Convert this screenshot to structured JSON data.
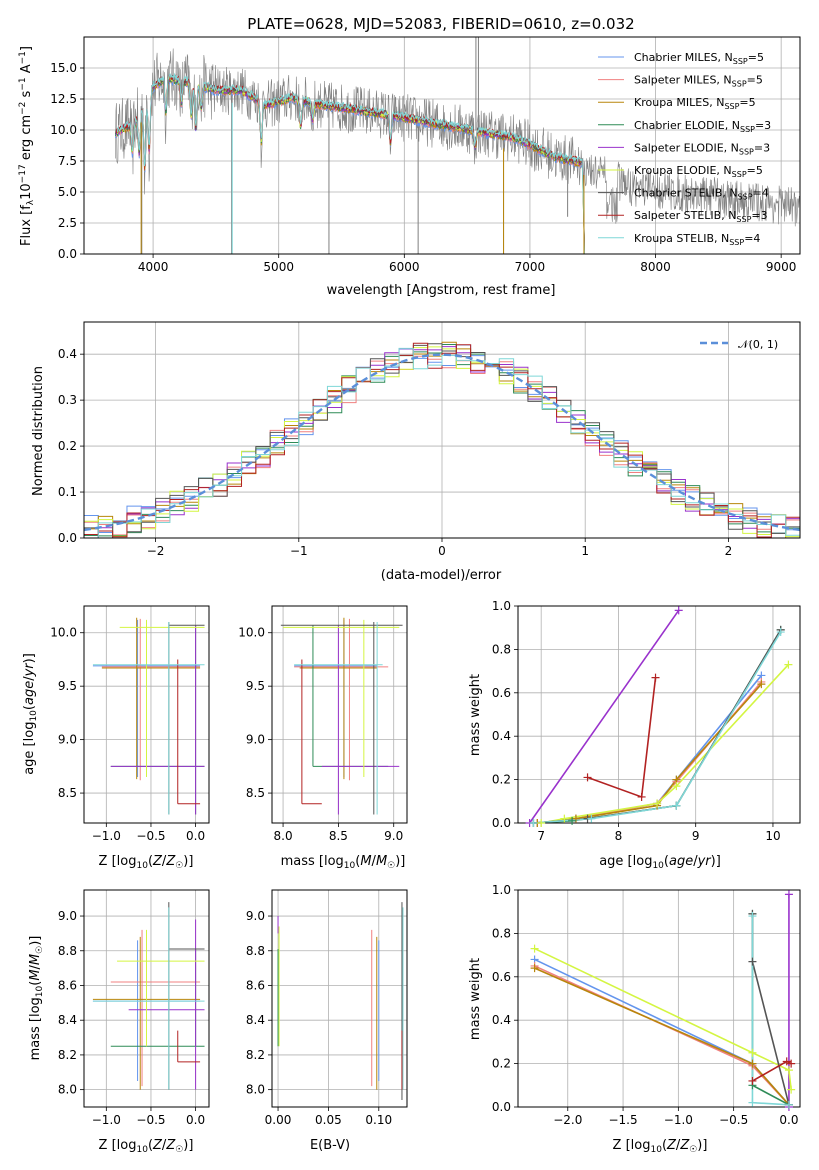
{
  "figure_title": "PLATE=0628, MJD=52083, FIBERID=0610, z=0.032",
  "colors": {
    "Chabrier MILES": "#6495ed",
    "Salpeter MILES": "#f08080",
    "Kroupa MILES": "#b8860b",
    "Chabrier ELODIE": "#2e8b57",
    "Salpeter ELODIE": "#9932cc",
    "Kroupa ELODIE": "#d4f542",
    "Chabrier STELIB": "#555555",
    "Salpeter STELIB": "#b22222",
    "Kroupa STELIB": "#7fd7d7",
    "data": "#808080",
    "normal": "#5b8fd9"
  },
  "chart_data": [
    {
      "type": "line",
      "id": "spectrum",
      "xlabel": "wavelength [Angstrom, rest frame]",
      "ylabel": "Flux [f_λ10^-17 erg cm^-2 s^-1 A^-1]",
      "xlim": [
        3450,
        9150
      ],
      "ylim": [
        0,
        17.5
      ],
      "xticks": [
        4000,
        5000,
        6000,
        7000,
        8000,
        9000
      ],
      "yticks": [
        0.0,
        2.5,
        5.0,
        7.5,
        10.0,
        12.5,
        15.0
      ],
      "legend_position": "top-right",
      "legend": [
        "Chabrier MILES, N_SSP=5",
        "Salpeter MILES, N_SSP=5",
        "Kroupa MILES, N_SSP=5",
        "Chabrier ELODIE, N_SSP=3",
        "Salpeter ELODIE, N_SSP=3",
        "Kroupa ELODIE, N_SSP=5",
        "Chabrier STELIB, N_SSP=4",
        "Salpeter STELIB, N_SSP=3",
        "Kroupa STELIB, N_SSP=4"
      ],
      "continuum": {
        "x": [
          3700,
          3850,
          4000,
          4100,
          4300,
          4500,
          4700,
          4900,
          5100,
          5300,
          5500,
          5700,
          6000,
          6300,
          6600,
          6900,
          7200,
          7400,
          7600,
          7800
        ],
        "y": [
          9.8,
          10.5,
          13.5,
          14.2,
          13.8,
          13.2,
          13.2,
          12.0,
          12.6,
          12.1,
          11.8,
          11.5,
          11.0,
          10.4,
          9.9,
          9.3,
          7.8,
          7.4,
          7.2,
          6.2
        ]
      },
      "data_noise_amplitude": 2.0,
      "model_end_x": 7420
    },
    {
      "type": "bar",
      "id": "residual-histogram",
      "xlabel": "(data-model)/error",
      "ylabel": "Normed distribution",
      "xlim": [
        -2.5,
        2.5
      ],
      "ylim": [
        0,
        0.47
      ],
      "xticks": [
        -2,
        -1,
        0,
        1,
        2
      ],
      "yticks": [
        0.0,
        0.1,
        0.2,
        0.3,
        0.4
      ],
      "bin_width": 0.1,
      "legend_position": "top-right",
      "legend_label": "𝒩(0, 1)",
      "normal_curve": {
        "mean": 0,
        "sigma": 1
      }
    },
    {
      "type": "scatter",
      "id": "age-vs-Z",
      "xlabel": "Z [log10(Z/Z☉)]",
      "ylabel": "age  [log10(age/yr)]",
      "xlim": [
        -1.25,
        0.15
      ],
      "ylim": [
        8.22,
        10.25
      ],
      "xticks": [
        -1.0,
        -0.5,
        0.0
      ],
      "yticks": [
        8.5,
        9.0,
        9.5,
        10.0
      ],
      "crosses": [
        {
          "model": "Chabrier MILES",
          "x": -0.65,
          "y": 9.69,
          "x0": -1.15,
          "x1": 0.05,
          "y0": 8.65,
          "y1": 10.12
        },
        {
          "model": "Salpeter MILES",
          "x": -0.62,
          "y": 9.68,
          "x0": -1.05,
          "x1": 0.05,
          "y0": 8.62,
          "y1": 10.13
        },
        {
          "model": "Kroupa MILES",
          "x": -0.66,
          "y": 9.67,
          "x0": -1.05,
          "x1": 0.05,
          "y0": 8.63,
          "y1": 10.14
        },
        {
          "model": "Chabrier ELODIE",
          "x": 0.0,
          "y": 8.75,
          "x0": -0.95,
          "x1": 0.1,
          "y0": 8.3,
          "y1": 10.07
        },
        {
          "model": "Salpeter ELODIE",
          "x": 0.0,
          "y": 8.75,
          "x0": -0.95,
          "x1": 0.1,
          "y0": 8.3,
          "y1": 10.07
        },
        {
          "model": "Kroupa ELODIE",
          "x": -0.55,
          "y": 10.05,
          "x0": -0.85,
          "x1": 0.1,
          "y0": 8.65,
          "y1": 10.12
        },
        {
          "model": "Chabrier STELIB",
          "x": -0.3,
          "y": 10.07,
          "x0": -0.3,
          "x1": 0.1,
          "y0": 8.3,
          "y1": 10.1
        },
        {
          "model": "Salpeter STELIB",
          "x": -0.2,
          "y": 8.4,
          "x0": -0.2,
          "x1": 0.05,
          "y0": 8.4,
          "y1": 9.75
        },
        {
          "model": "Kroupa STELIB",
          "x": -0.3,
          "y": 9.7,
          "x0": -1.15,
          "x1": 0.1,
          "y0": 8.3,
          "y1": 10.1
        }
      ]
    },
    {
      "type": "scatter",
      "id": "age-vs-mass",
      "xlabel": "mass [log10(M/M☉)]",
      "ylabel": "",
      "xlim": [
        7.9,
        9.12
      ],
      "ylim": [
        8.22,
        10.25
      ],
      "xticks": [
        8.0,
        8.5,
        9.0
      ],
      "yticks": [
        8.5,
        9.0,
        9.5,
        10.0
      ],
      "crosses": [
        {
          "model": "Chabrier MILES",
          "x": 8.55,
          "y": 9.69,
          "x0": 8.1,
          "x1": 8.85,
          "y0": 8.65,
          "y1": 10.12
        },
        {
          "model": "Salpeter MILES",
          "x": 8.6,
          "y": 9.68,
          "x0": 8.1,
          "x1": 8.95,
          "y0": 8.62,
          "y1": 10.13
        },
        {
          "model": "Kroupa MILES",
          "x": 8.55,
          "y": 9.67,
          "x0": 8.15,
          "x1": 8.85,
          "y0": 8.63,
          "y1": 10.14
        },
        {
          "model": "Chabrier ELODIE",
          "x": 8.27,
          "y": 8.75,
          "x0": 8.27,
          "x1": 8.95,
          "y0": 8.75,
          "y1": 10.07
        },
        {
          "model": "Salpeter ELODIE",
          "x": 8.5,
          "y": 8.75,
          "x0": 8.35,
          "x1": 9.05,
          "y0": 8.3,
          "y1": 10.07
        },
        {
          "model": "Kroupa ELODIE",
          "x": 8.73,
          "y": 10.05,
          "x0": 8.0,
          "x1": 9.05,
          "y0": 8.65,
          "y1": 10.12
        },
        {
          "model": "Chabrier STELIB",
          "x": 8.82,
          "y": 10.07,
          "x0": 7.98,
          "x1": 9.08,
          "y0": 8.3,
          "y1": 10.1
        },
        {
          "model": "Salpeter STELIB",
          "x": 8.17,
          "y": 8.4,
          "x0": 8.17,
          "x1": 8.35,
          "y0": 8.4,
          "y1": 9.75
        },
        {
          "model": "Kroupa STELIB",
          "x": 8.85,
          "y": 9.7,
          "x0": 8.1,
          "x1": 8.9,
          "y0": 8.3,
          "y1": 10.1
        }
      ]
    },
    {
      "type": "line",
      "id": "mass-weight-vs-age",
      "xlabel": "age  [log10(age/yr)]",
      "ylabel": "mass weight",
      "xlim": [
        6.7,
        10.35
      ],
      "ylim": [
        0,
        1.0
      ],
      "xticks": [
        7,
        8,
        9,
        10
      ],
      "yticks": [
        0.0,
        0.2,
        0.4,
        0.6,
        0.8,
        1.0
      ],
      "series": [
        {
          "model": "Chabrier MILES",
          "x": [
            6.95,
            7.45,
            8.5,
            8.75,
            9.85
          ],
          "y": [
            0.0,
            0.02,
            0.09,
            0.2,
            0.68
          ]
        },
        {
          "model": "Salpeter MILES",
          "x": [
            6.95,
            7.45,
            8.5,
            8.75,
            9.85
          ],
          "y": [
            0.0,
            0.02,
            0.09,
            0.19,
            0.65
          ]
        },
        {
          "model": "Kroupa MILES",
          "x": [
            6.95,
            7.45,
            8.5,
            8.75,
            9.85
          ],
          "y": [
            0.0,
            0.02,
            0.08,
            0.2,
            0.64
          ]
        },
        {
          "model": "Chabrier ELODIE",
          "x": [
            6.9,
            7.4,
            8.75,
            10.1
          ],
          "y": [
            0.0,
            0.01,
            0.08,
            0.89
          ]
        },
        {
          "model": "Salpeter ELODIE",
          "x": [
            6.85,
            8.78
          ],
          "y": [
            0.0,
            0.98
          ]
        },
        {
          "model": "Kroupa ELODIE",
          "x": [
            7.0,
            7.3,
            8.5,
            8.75,
            10.2
          ],
          "y": [
            0.0,
            0.02,
            0.09,
            0.17,
            0.73
          ]
        },
        {
          "model": "Chabrier STELIB",
          "x": [
            6.9,
            7.6,
            8.75,
            10.1
          ],
          "y": [
            0.0,
            0.02,
            0.08,
            0.89
          ]
        },
        {
          "model": "Salpeter STELIB",
          "x": [
            7.6,
            8.3,
            8.48
          ],
          "y": [
            0.21,
            0.12,
            0.67
          ]
        },
        {
          "model": "Kroupa STELIB",
          "x": [
            6.9,
            7.65,
            8.75,
            10.1
          ],
          "y": [
            0.0,
            0.02,
            0.08,
            0.88
          ]
        }
      ]
    },
    {
      "type": "scatter",
      "id": "mass-vs-Z",
      "xlabel": "Z [log10(Z/Z☉)]",
      "ylabel": "mass [log10(M/M☉)]",
      "xlim": [
        -1.25,
        0.15
      ],
      "ylim": [
        7.9,
        9.15
      ],
      "xticks": [
        -1.0,
        -0.5,
        0.0
      ],
      "yticks": [
        8.0,
        8.2,
        8.4,
        8.6,
        8.8,
        9.0
      ],
      "crosses": [
        {
          "model": "Chabrier MILES",
          "x": -0.65,
          "y": 8.51,
          "x0": -1.15,
          "x1": 0.05,
          "y0": 8.05,
          "y1": 8.86
        },
        {
          "model": "Salpeter MILES",
          "x": -0.6,
          "y": 8.62,
          "x0": -0.95,
          "x1": 0.05,
          "y0": 8.02,
          "y1": 8.92
        },
        {
          "model": "Kroupa MILES",
          "x": -0.62,
          "y": 8.52,
          "x0": -1.15,
          "x1": 0.05,
          "y0": 8.0,
          "y1": 8.88
        },
        {
          "model": "Chabrier ELODIE",
          "x": 0.0,
          "y": 8.25,
          "x0": -0.95,
          "x1": 0.1,
          "y0": 8.25,
          "y1": 8.81
        },
        {
          "model": "Salpeter ELODIE",
          "x": 0.0,
          "y": 8.46,
          "x0": -0.75,
          "x1": 0.1,
          "y0": 8.0,
          "y1": 8.98
        },
        {
          "model": "Kroupa ELODIE",
          "x": -0.55,
          "y": 8.74,
          "x0": -0.88,
          "x1": 0.1,
          "y0": 8.25,
          "y1": 8.92
        },
        {
          "model": "Chabrier STELIB",
          "x": -0.3,
          "y": 8.81,
          "x0": -0.3,
          "x1": 0.1,
          "y0": 8.0,
          "y1": 9.08
        },
        {
          "model": "Salpeter STELIB",
          "x": -0.2,
          "y": 8.16,
          "x0": -0.2,
          "x1": 0.05,
          "y0": 8.16,
          "y1": 8.34
        },
        {
          "model": "Kroupa STELIB",
          "x": -0.3,
          "y": 8.51,
          "x0": -1.15,
          "x1": 0.1,
          "y0": 8.0,
          "y1": 9.05
        }
      ]
    },
    {
      "type": "scatter",
      "id": "mass-vs-ebv",
      "xlabel": "E(B-V)",
      "ylabel": "",
      "xlim": [
        -0.006,
        0.128
      ],
      "ylim": [
        7.9,
        9.15
      ],
      "xticks": [
        0.0,
        0.05,
        0.1
      ],
      "yticks": [
        8.0,
        8.2,
        8.4,
        8.6,
        8.8,
        9.0
      ],
      "vlines": [
        {
          "model": "Chabrier MILES",
          "x": 0.1,
          "y0": 8.05,
          "y1": 8.86
        },
        {
          "model": "Salpeter MILES",
          "x": 0.093,
          "y0": 8.02,
          "y1": 8.92
        },
        {
          "model": "Kroupa MILES",
          "x": 0.098,
          "y0": 8.0,
          "y1": 8.88
        },
        {
          "model": "Chabrier ELODIE",
          "x": 0.0,
          "y0": 8.25,
          "y1": 8.81
        },
        {
          "model": "Salpeter ELODIE",
          "x": 0.0,
          "y0": 8.9,
          "y1": 9.0
        },
        {
          "model": "Kroupa ELODIE",
          "x": 0.001,
          "y0": 8.25,
          "y1": 8.94
        },
        {
          "model": "Chabrier STELIB",
          "x": 0.123,
          "y0": 7.94,
          "y1": 9.08
        },
        {
          "model": "Salpeter STELIB",
          "x": 0.123,
          "y0": 8.0,
          "y1": 8.34
        },
        {
          "model": "Kroupa STELIB",
          "x": 0.124,
          "y0": 8.0,
          "y1": 9.05
        }
      ]
    },
    {
      "type": "line",
      "id": "mass-weight-vs-Z",
      "xlabel": "Z [log10(Z/Z☉)]",
      "ylabel": "mass weight",
      "xlim": [
        -2.45,
        0.1
      ],
      "ylim": [
        0,
        1.0
      ],
      "xticks": [
        -2.0,
        -1.5,
        -1.0,
        -0.5,
        0.0
      ],
      "yticks": [
        0.0,
        0.2,
        0.4,
        0.6,
        0.8,
        1.0
      ],
      "series": [
        {
          "model": "Chabrier MILES",
          "x": [
            -2.3,
            -0.33,
            0.0
          ],
          "y": [
            0.68,
            0.2,
            0.01
          ]
        },
        {
          "model": "Salpeter MILES",
          "x": [
            -2.3,
            -0.33,
            0.0
          ],
          "y": [
            0.65,
            0.19,
            0.01
          ]
        },
        {
          "model": "Kroupa MILES",
          "x": [
            -2.3,
            -0.33,
            0.0
          ],
          "y": [
            0.64,
            0.2,
            0.01
          ]
        },
        {
          "model": "Chabrier ELODIE",
          "x": [
            -0.33,
            -0.33,
            0.0
          ],
          "y": [
            0.89,
            0.1,
            0.01
          ]
        },
        {
          "model": "Salpeter ELODIE",
          "x": [
            0.0,
            0.0
          ],
          "y": [
            0.0,
            0.98
          ]
        },
        {
          "model": "Kroupa ELODIE",
          "x": [
            -2.3,
            -0.33,
            0.0,
            0.02
          ],
          "y": [
            0.73,
            0.25,
            0.17,
            0.08
          ]
        },
        {
          "model": "Chabrier STELIB",
          "x": [
            -0.33,
            -0.33,
            0.0
          ],
          "y": [
            0.89,
            0.67,
            0.01
          ]
        },
        {
          "model": "Salpeter STELIB",
          "x": [
            -0.33,
            -0.02,
            0.02
          ],
          "y": [
            0.12,
            0.21,
            0.2
          ]
        },
        {
          "model": "Kroupa STELIB",
          "x": [
            -0.33,
            -0.33,
            0.0
          ],
          "y": [
            0.88,
            0.02,
            0.01
          ]
        }
      ]
    }
  ]
}
